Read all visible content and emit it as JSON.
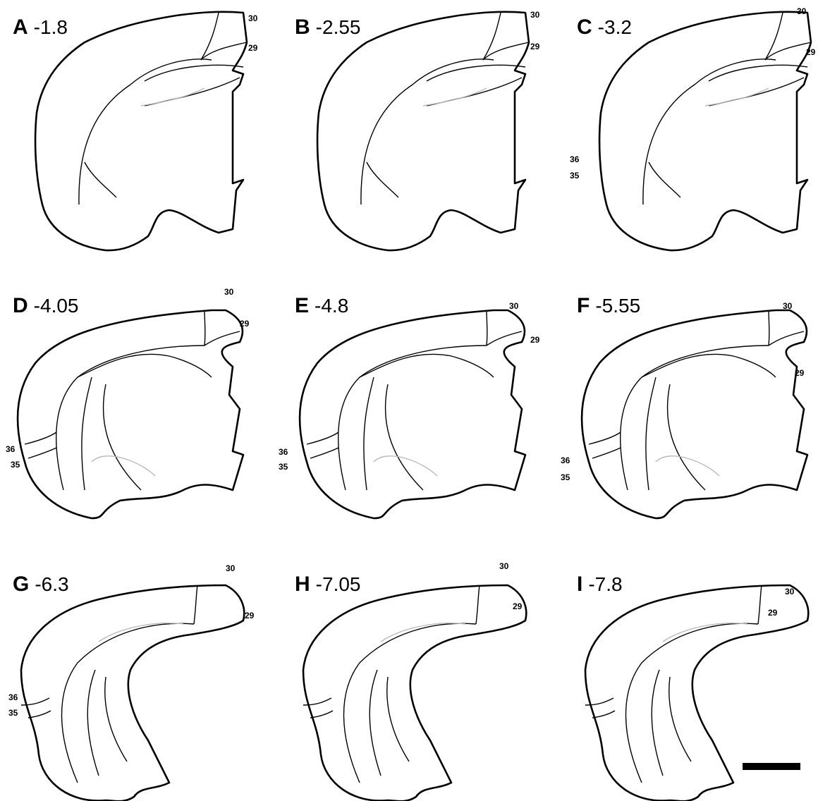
{
  "panels": [
    {
      "letter": "A",
      "level": "-1.8",
      "areas": [
        "30",
        "29"
      ]
    },
    {
      "letter": "B",
      "level": "-2.55",
      "areas": [
        "30",
        "29"
      ]
    },
    {
      "letter": "C",
      "level": "-3.2",
      "areas": [
        "30",
        "29",
        "36",
        "35"
      ]
    },
    {
      "letter": "D",
      "level": "-4.05",
      "areas": [
        "30",
        "29",
        "36",
        "35"
      ]
    },
    {
      "letter": "E",
      "level": "-4.8",
      "areas": [
        "30",
        "29",
        "36",
        "35"
      ]
    },
    {
      "letter": "F",
      "level": "-5.55",
      "areas": [
        "30",
        "29",
        "36",
        "35"
      ]
    },
    {
      "letter": "G",
      "level": "-6.3",
      "areas": [
        "30",
        "29",
        "36",
        "35"
      ]
    },
    {
      "letter": "H",
      "level": "-7.05",
      "areas": [
        "30",
        "29"
      ]
    },
    {
      "letter": "I",
      "level": "-7.8",
      "areas": [
        "30",
        "29"
      ]
    }
  ]
}
